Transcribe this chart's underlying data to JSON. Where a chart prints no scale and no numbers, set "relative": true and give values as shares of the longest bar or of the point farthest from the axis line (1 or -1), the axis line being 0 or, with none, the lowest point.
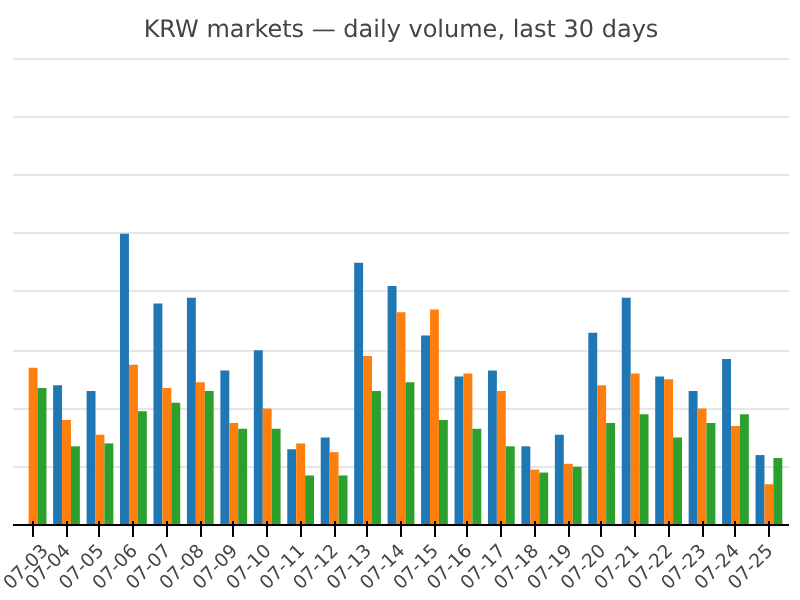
{
  "chart_data": {
    "type": "bar",
    "title": "KRW markets — daily volume, last 30 days",
    "relative": true,
    "grid": "y",
    "categories": [
      "07-03",
      "07-04",
      "07-05",
      "07-06",
      "07-07",
      "07-08",
      "07-09",
      "07-10",
      "07-11",
      "07-12",
      "07-13",
      "07-14",
      "07-15",
      "07-16",
      "07-17",
      "07-18",
      "07-19",
      "07-20",
      "07-21",
      "07-22",
      "07-23",
      "07-24",
      "07-25"
    ],
    "series": [
      {
        "color": "#1f77b4",
        "values": [
          null,
          0.48,
          0.46,
          1.0,
          0.76,
          0.78,
          0.53,
          0.6,
          0.26,
          0.3,
          0.9,
          0.82,
          0.65,
          0.51,
          0.53,
          0.27,
          0.31,
          0.66,
          0.78,
          0.51,
          0.46,
          0.57,
          0.24
        ]
      },
      {
        "color": "#ff7f0e",
        "values": [
          0.54,
          0.36,
          0.31,
          0.55,
          0.47,
          0.49,
          0.35,
          0.4,
          0.28,
          0.25,
          0.58,
          0.73,
          0.74,
          0.52,
          0.46,
          0.19,
          0.21,
          0.48,
          0.52,
          0.5,
          0.4,
          0.34,
          0.14
        ]
      },
      {
        "color": "#2ca02c",
        "values": [
          0.47,
          0.27,
          0.28,
          0.39,
          0.42,
          0.46,
          0.33,
          0.33,
          0.17,
          0.17,
          0.46,
          0.49,
          0.36,
          0.33,
          0.27,
          0.18,
          0.2,
          0.35,
          0.38,
          0.3,
          0.35,
          0.38,
          0.23
        ]
      }
    ]
  }
}
